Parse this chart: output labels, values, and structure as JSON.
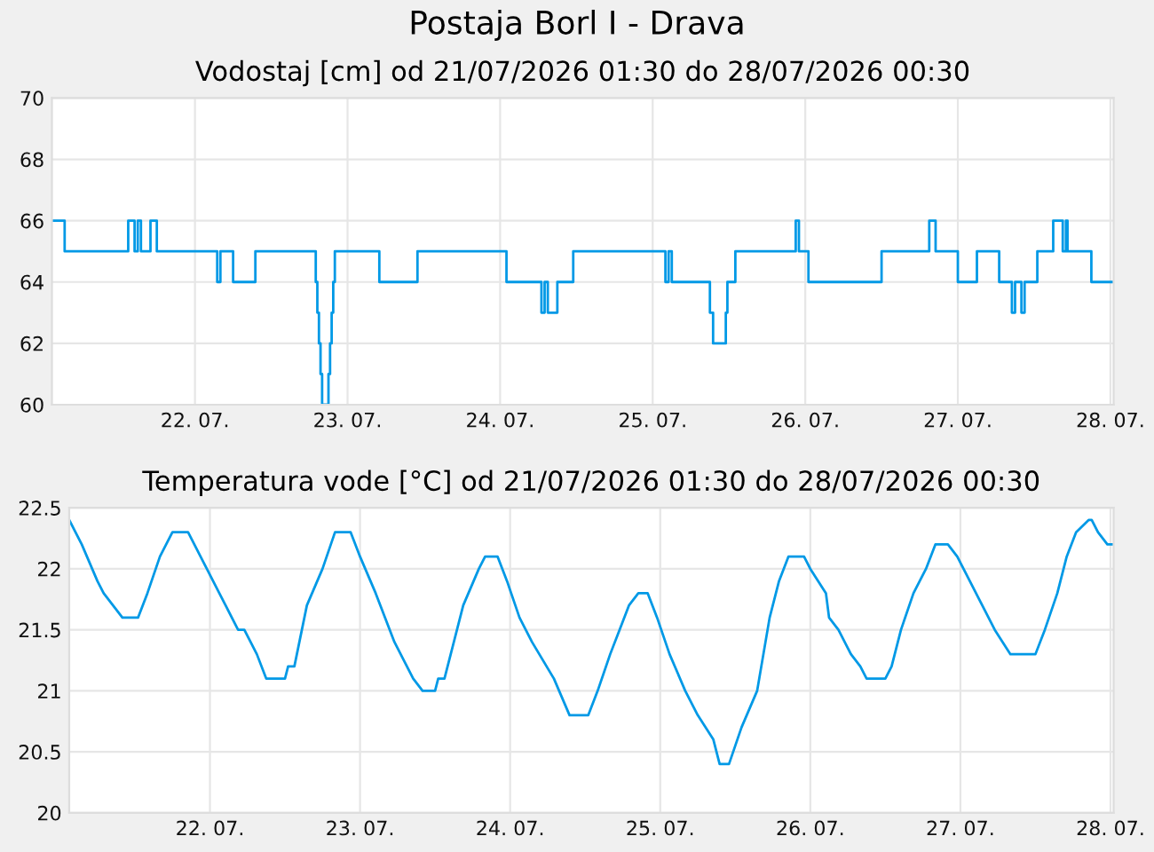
{
  "chart_data": [
    {
      "type": "step",
      "title": "Postaja Borl I - Drava",
      "subtitle": "Vodostaj [cm] od 21/07/2026 01:30 do 28/07/2026 00:30",
      "x": [
        "2026-07-21T01:30",
        "2026-07-21T03:00",
        "2026-07-21T03:30",
        "2026-07-21T13:00",
        "2026-07-21T13:30",
        "2026-07-21T14:30",
        "2026-07-21T15:00",
        "2026-07-21T15:30",
        "2026-07-21T17:00",
        "2026-07-21T18:00",
        "2026-07-22T03:00",
        "2026-07-22T03:30",
        "2026-07-22T04:00",
        "2026-07-22T06:00",
        "2026-07-22T09:30",
        "2026-07-22T18:30",
        "2026-07-22T19:00",
        "2026-07-22T19:15",
        "2026-07-22T19:30",
        "2026-07-22T19:45",
        "2026-07-22T20:00",
        "2026-07-22T21:00",
        "2026-07-22T21:15",
        "2026-07-22T21:30",
        "2026-07-22T21:45",
        "2026-07-22T22:00",
        "2026-07-23T05:00",
        "2026-07-23T11:00",
        "2026-07-24T01:00",
        "2026-07-24T06:30",
        "2026-07-24T07:00",
        "2026-07-24T07:30",
        "2026-07-24T09:00",
        "2026-07-24T11:30",
        "2026-07-25T02:00",
        "2026-07-25T02:30",
        "2026-07-25T03:00",
        "2026-07-25T09:00",
        "2026-07-25T09:30",
        "2026-07-25T11:30",
        "2026-07-25T11:45",
        "2026-07-25T13:00",
        "2026-07-25T22:30",
        "2026-07-25T23:00",
        "2026-07-26T00:30",
        "2026-07-26T12:00",
        "2026-07-26T19:30",
        "2026-07-26T20:30",
        "2026-07-27T00:00",
        "2026-07-27T03:00",
        "2026-07-27T06:30",
        "2026-07-27T08:30",
        "2026-07-27T09:00",
        "2026-07-27T10:00",
        "2026-07-27T10:30",
        "2026-07-27T12:30",
        "2026-07-27T15:00",
        "2026-07-27T16:30",
        "2026-07-27T17:00",
        "2026-07-27T17:15",
        "2026-07-27T21:00",
        "2026-07-28T00:30"
      ],
      "series": [
        {
          "color": "#0099e6",
          "values": [
            66,
            66,
            65,
            65,
            66,
            65,
            66,
            65,
            66,
            65,
            65,
            64,
            65,
            64,
            65,
            65,
            64,
            63,
            62,
            61,
            60,
            61,
            62,
            63,
            64,
            65,
            64,
            65,
            64,
            63,
            64,
            63,
            64,
            65,
            64,
            65,
            64,
            63,
            62,
            63,
            64,
            65,
            66,
            65,
            64,
            65,
            66,
            65,
            64,
            65,
            64,
            63,
            64,
            63,
            64,
            65,
            66,
            65,
            66,
            65,
            64,
            64
          ]
        }
      ],
      "xlim": [
        "2026-07-21T01:30",
        "2026-07-28T00:30"
      ],
      "xticks": [
        {
          "value": "2026-07-22",
          "label": "22. 07."
        },
        {
          "value": "2026-07-23",
          "label": "23. 07."
        },
        {
          "value": "2026-07-24",
          "label": "24. 07."
        },
        {
          "value": "2026-07-25",
          "label": "25. 07."
        },
        {
          "value": "2026-07-26",
          "label": "26. 07."
        },
        {
          "value": "2026-07-27",
          "label": "27. 07."
        },
        {
          "value": "2026-07-28",
          "label": "28. 07."
        }
      ],
      "ylim": [
        60,
        70
      ],
      "yticks": [
        60,
        62,
        64,
        66,
        68,
        70
      ],
      "grid": true
    },
    {
      "type": "line",
      "title": "Temperatura vode [°C] od 21/07/2026 01:30 do 28/07/2026 00:30",
      "x": [
        "2026-07-21T01:30",
        "2026-07-21T03:30",
        "2026-07-21T06:00",
        "2026-07-21T07:00",
        "2026-07-21T08:30",
        "2026-07-21T10:00",
        "2026-07-21T12:30",
        "2026-07-21T14:00",
        "2026-07-21T16:00",
        "2026-07-21T18:00",
        "2026-07-21T20:30",
        "2026-07-21T21:30",
        "2026-07-21T23:30",
        "2026-07-22T01:30",
        "2026-07-22T04:30",
        "2026-07-22T05:30",
        "2026-07-22T07:30",
        "2026-07-22T09:00",
        "2026-07-22T12:00",
        "2026-07-22T12:30",
        "2026-07-22T13:30",
        "2026-07-22T15:30",
        "2026-07-22T18:00",
        "2026-07-22T20:00",
        "2026-07-22T22:30",
        "2026-07-23T00:00",
        "2026-07-23T02:30",
        "2026-07-23T05:30",
        "2026-07-23T08:30",
        "2026-07-23T10:00",
        "2026-07-23T12:00",
        "2026-07-23T12:30",
        "2026-07-23T13:30",
        "2026-07-23T14:30",
        "2026-07-23T16:30",
        "2026-07-23T19:00",
        "2026-07-23T20:00",
        "2026-07-23T22:00",
        "2026-07-23T23:30",
        "2026-07-24T01:30",
        "2026-07-24T03:30",
        "2026-07-24T07:00",
        "2026-07-24T09:30",
        "2026-07-24T12:30",
        "2026-07-24T14:00",
        "2026-07-24T16:00",
        "2026-07-24T17:30",
        "2026-07-24T19:00",
        "2026-07-24T20:30",
        "2026-07-24T22:00",
        "2026-07-24T23:30",
        "2026-07-25T01:30",
        "2026-07-25T04:00",
        "2026-07-25T06:00",
        "2026-07-25T08:30",
        "2026-07-25T09:30",
        "2026-07-25T11:00",
        "2026-07-25T13:00",
        "2026-07-25T15:30",
        "2026-07-25T17:30",
        "2026-07-25T19:00",
        "2026-07-25T20:30",
        "2026-07-25T23:00",
        "2026-07-26T00:00",
        "2026-07-26T02:30",
        "2026-07-26T03:00",
        "2026-07-26T04:30",
        "2026-07-26T06:30",
        "2026-07-26T08:00",
        "2026-07-26T09:00",
        "2026-07-26T12:00",
        "2026-07-26T13:00",
        "2026-07-26T14:30",
        "2026-07-26T16:30",
        "2026-07-26T18:30",
        "2026-07-26T20:00",
        "2026-07-26T22:00",
        "2026-07-26T23:30",
        "2026-07-27T01:30",
        "2026-07-27T03:30",
        "2026-07-27T05:30",
        "2026-07-27T08:00",
        "2026-07-27T12:00",
        "2026-07-27T13:30",
        "2026-07-27T15:30",
        "2026-07-27T17:00",
        "2026-07-27T18:30",
        "2026-07-27T20:30",
        "2026-07-27T21:00",
        "2026-07-27T22:00",
        "2026-07-27T23:30",
        "2026-07-28T00:30"
      ],
      "series": [
        {
          "color": "#0099e6",
          "values": [
            22.4,
            22.2,
            21.9,
            21.8,
            21.7,
            21.6,
            21.6,
            21.8,
            22.1,
            22.3,
            22.3,
            22.2,
            22.0,
            21.8,
            21.5,
            21.5,
            21.3,
            21.1,
            21.1,
            21.2,
            21.2,
            21.7,
            22.0,
            22.3,
            22.3,
            22.1,
            21.8,
            21.4,
            21.1,
            21.0,
            21.0,
            21.1,
            21.1,
            21.3,
            21.7,
            22.0,
            22.1,
            22.1,
            21.9,
            21.6,
            21.4,
            21.1,
            20.8,
            20.8,
            21.0,
            21.3,
            21.5,
            21.7,
            21.8,
            21.8,
            21.6,
            21.3,
            21.0,
            20.8,
            20.6,
            20.4,
            20.4,
            20.7,
            21.0,
            21.6,
            21.9,
            22.1,
            22.1,
            22.0,
            21.8,
            21.6,
            21.5,
            21.3,
            21.2,
            21.1,
            21.1,
            21.2,
            21.5,
            21.8,
            22.0,
            22.2,
            22.2,
            22.1,
            21.9,
            21.7,
            21.5,
            21.3,
            21.3,
            21.5,
            21.8,
            22.1,
            22.3,
            22.4,
            22.4,
            22.3,
            22.2,
            22.2
          ]
        }
      ],
      "xlim": [
        "2026-07-21T01:30",
        "2026-07-28T00:30"
      ],
      "xticks": [
        {
          "value": "2026-07-22",
          "label": "22. 07."
        },
        {
          "value": "2026-07-23",
          "label": "23. 07."
        },
        {
          "value": "2026-07-24",
          "label": "24. 07."
        },
        {
          "value": "2026-07-25",
          "label": "25. 07."
        },
        {
          "value": "2026-07-26",
          "label": "26. 07."
        },
        {
          "value": "2026-07-27",
          "label": "27. 07."
        },
        {
          "value": "2026-07-28",
          "label": "28. 07."
        }
      ],
      "ylim": [
        20,
        22.5
      ],
      "yticks": [
        20,
        20.5,
        21,
        21.5,
        22,
        22.5
      ],
      "grid": true
    }
  ]
}
